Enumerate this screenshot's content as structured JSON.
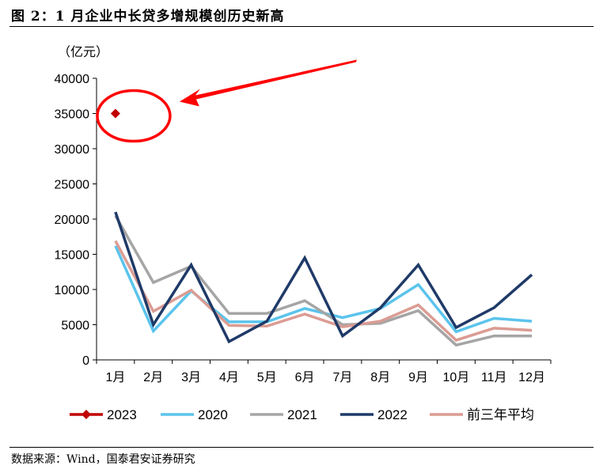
{
  "header": {
    "title": "图 2：1 月企业中长贷多增规模创历史新高"
  },
  "footer": {
    "source": "数据来源：Wind，国泰君安证券研究"
  },
  "chart_data": {
    "type": "line",
    "title": "图 2：1 月企业中长贷多增规模创历史新高",
    "ylabel": "（亿元）",
    "xlabel": "",
    "ylim": [
      0,
      40000
    ],
    "yticks": [
      0,
      5000,
      10000,
      15000,
      20000,
      25000,
      30000,
      35000,
      40000
    ],
    "categories": [
      "1月",
      "2月",
      "3月",
      "4月",
      "5月",
      "6月",
      "7月",
      "8月",
      "9月",
      "10月",
      "11月",
      "12月"
    ],
    "grid": false,
    "legend_position": "bottom",
    "series": [
      {
        "name": "2023",
        "color": "#C00000",
        "marker": "diamond",
        "line": false,
        "values": [
          35000,
          null,
          null,
          null,
          null,
          null,
          null,
          null,
          null,
          null,
          null,
          null
        ]
      },
      {
        "name": "2020",
        "color": "#5BC4EC",
        "marker": "none",
        "line": true,
        "values": [
          16200,
          4100,
          9800,
          5400,
          5400,
          7300,
          6000,
          7300,
          10700,
          4000,
          5900,
          5500
        ]
      },
      {
        "name": "2021",
        "color": "#A5A5A5",
        "marker": "none",
        "line": true,
        "values": [
          20500,
          11000,
          13300,
          6600,
          6600,
          8400,
          5000,
          5200,
          7000,
          2100,
          3400,
          3400
        ]
      },
      {
        "name": "2022",
        "color": "#1F3A68",
        "marker": "none",
        "line": true,
        "values": [
          21000,
          5000,
          13500,
          2600,
          5500,
          14500,
          3400,
          7400,
          13500,
          4600,
          7400,
          12100
        ]
      },
      {
        "name": "前三年平均",
        "color": "#DB9C93",
        "marker": "none",
        "line": true,
        "values": [
          16900,
          6900,
          9900,
          4900,
          4800,
          6500,
          4700,
          5500,
          7800,
          2800,
          4500,
          4200
        ]
      }
    ],
    "annotation": {
      "type": "callout",
      "shape": "ellipse-with-arrow",
      "color": "#FF0000",
      "target": "2023"
    }
  }
}
